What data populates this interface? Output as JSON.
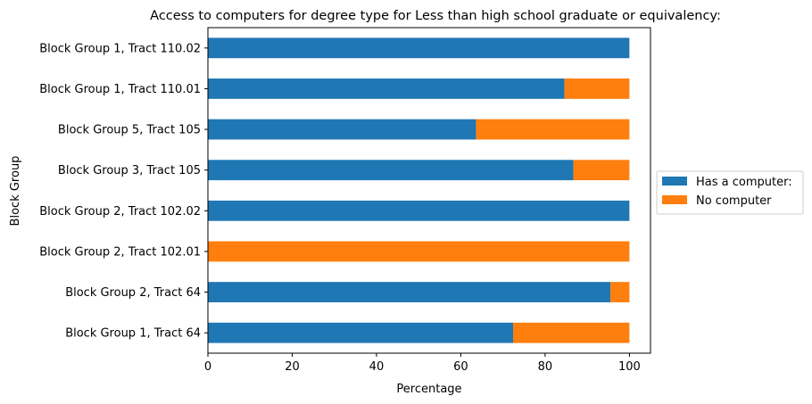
{
  "chart_data": {
    "type": "bar",
    "orientation": "horizontal",
    "stacked": true,
    "title": "Access to computers for degree type for Less than high school graduate or equivalency:",
    "xlabel": "Percentage",
    "ylabel": "Block Group",
    "xlim": [
      0,
      105
    ],
    "xticks": [
      0,
      20,
      40,
      60,
      80,
      100
    ],
    "grid": false,
    "legend_position": "right",
    "categories": [
      "Block Group 1, Tract 64",
      "Block Group 2, Tract 64",
      "Block Group 2, Tract 102.01",
      "Block Group 2, Tract 102.02",
      "Block Group 3, Tract 105",
      "Block Group 5, Tract 105",
      "Block Group 1, Tract 110.01",
      "Block Group 1, Tract 110.02"
    ],
    "series": [
      {
        "name": "Has a computer:",
        "color": "#1f77b4",
        "values": [
          72.4,
          95.5,
          0,
          100,
          86.7,
          63.6,
          84.6,
          100
        ]
      },
      {
        "name": "No computer",
        "color": "#ff7f0e",
        "values": [
          27.6,
          4.5,
          100,
          0,
          13.3,
          36.4,
          15.4,
          0
        ]
      }
    ]
  }
}
